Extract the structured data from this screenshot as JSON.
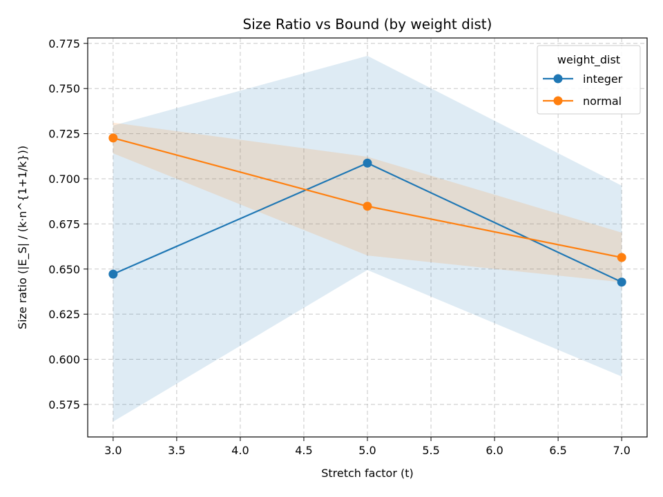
{
  "chart_data": {
    "type": "line",
    "title": "Size Ratio vs Bound (by weight dist)",
    "xlabel": "Stretch factor (t)",
    "ylabel": "Size ratio (|E_S| / (k·n^{1+1/k}))",
    "xlim": [
      2.8,
      7.2
    ],
    "ylim": [
      0.557,
      0.778
    ],
    "xticks": [
      3.0,
      3.5,
      4.0,
      4.5,
      5.0,
      5.5,
      6.0,
      6.5,
      7.0
    ],
    "xtick_labels": [
      "3.0",
      "3.5",
      "4.0",
      "4.5",
      "5.0",
      "5.5",
      "6.0",
      "6.5",
      "7.0"
    ],
    "yticks": [
      0.575,
      0.6,
      0.625,
      0.65,
      0.675,
      0.7,
      0.725,
      0.75,
      0.775
    ],
    "ytick_labels": [
      "0.575",
      "0.600",
      "0.625",
      "0.650",
      "0.675",
      "0.700",
      "0.725",
      "0.750",
      "0.775"
    ],
    "grid": true,
    "legend": {
      "title": "weight_dist",
      "position": "top-right"
    },
    "x": [
      3.0,
      5.0,
      7.0
    ],
    "series": [
      {
        "name": "integer",
        "color": "#1f77b4",
        "values": [
          0.6472,
          0.7087,
          0.6428
        ],
        "band_lower": [
          0.5655,
          0.6495,
          0.5905
        ],
        "band_upper": [
          0.7295,
          0.7681,
          0.6962
        ]
      },
      {
        "name": "normal",
        "color": "#ff7f0e",
        "values": [
          0.7226,
          0.6848,
          0.6564
        ],
        "band_lower": [
          0.7141,
          0.6575,
          0.6427
        ],
        "band_upper": [
          0.7311,
          0.7122,
          0.6702
        ]
      }
    ]
  }
}
